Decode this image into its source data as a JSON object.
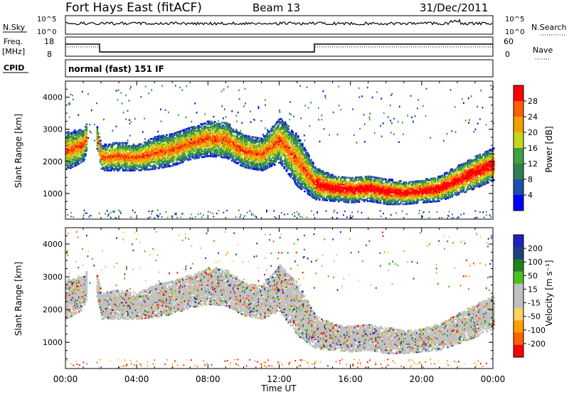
{
  "header": {
    "title": "Fort Hays East (fitACF)",
    "beam": "Beam 13",
    "date": "31/Dec/2011"
  },
  "strip_panels": {
    "nsky_label": "N.Sky",
    "nsearch_label": "N.Search",
    "nsky_ticks": [
      "10^5",
      "10^0"
    ],
    "nsearch_ticks": [
      "10^5",
      "10^0"
    ],
    "freq_label": "Freq.",
    "freq_unit": "[MHz]",
    "freq_ticks": [
      "18",
      "8"
    ],
    "nave_label": "Nave",
    "nave_ticks": [
      "60",
      "0"
    ],
    "cpid_label": "CPID",
    "cpid_value": "normal (fast) 151 IF"
  },
  "colors": {
    "power_scale": [
      "#0000ff",
      "#1f4fa8",
      "#2f7f50",
      "#3fa03f",
      "#c6d61e",
      "#f0a000",
      "#ff6000",
      "#ff0000"
    ],
    "velocity_scale": [
      "#ff0000",
      "#ff6000",
      "#ffa000",
      "#ffd060",
      "#c0c0c0",
      "#c0c0c0",
      "#50c020",
      "#208020",
      "#204080",
      "#2020c0"
    ],
    "ground_scatter": "#c0c0c0"
  },
  "chart_data": [
    {
      "type": "heatmap",
      "title": "Power",
      "xlabel": "Time UT",
      "ylabel": "Slant Range [km]",
      "x_ticks": [
        "00:00",
        "04:00",
        "08:00",
        "12:00",
        "16:00",
        "20:00",
        "00:00"
      ],
      "y_ticks": [
        "1000",
        "2000",
        "3000",
        "4000"
      ],
      "xlim": [
        0,
        24
      ],
      "ylim": [
        200,
        4500
      ],
      "colorbar_label": "Power [dB]",
      "colorbar_ticks": [
        "4",
        "8",
        "12",
        "16",
        "20",
        "24",
        "28"
      ],
      "color_range": [
        0,
        32
      ],
      "echo_band": {
        "hours": [
          0,
          1,
          1.5,
          2,
          3,
          4,
          5,
          6,
          7,
          8,
          9,
          10,
          11,
          12,
          13,
          14,
          15,
          16,
          17,
          18,
          19,
          20,
          21,
          22,
          23,
          24
        ],
        "center_km": [
          2300,
          2500,
          3300,
          2100,
          2150,
          2100,
          2250,
          2350,
          2550,
          2700,
          2650,
          2300,
          2200,
          2650,
          2000,
          1300,
          1150,
          1100,
          1150,
          1050,
          1000,
          1050,
          1150,
          1400,
          1650,
          1900
        ],
        "width_km": [
          600,
          500,
          300,
          400,
          450,
          400,
          500,
          500,
          500,
          550,
          550,
          500,
          500,
          700,
          800,
          500,
          400,
          400,
          400,
          400,
          350,
          350,
          400,
          450,
          500,
          500
        ]
      }
    },
    {
      "type": "heatmap",
      "title": "Velocity",
      "xlabel": "Time UT",
      "ylabel": "Slant Range [km]",
      "x_ticks": [
        "00:00",
        "04:00",
        "08:00",
        "12:00",
        "16:00",
        "20:00",
        "00:00"
      ],
      "y_ticks": [
        "1000",
        "2000",
        "3000",
        "4000"
      ],
      "xlim": [
        0,
        24
      ],
      "ylim": [
        200,
        4500
      ],
      "colorbar_label": "Velocity [m s⁻¹]",
      "colorbar_ticks": [
        "200",
        "100",
        "50",
        "15",
        "-15",
        "-50",
        "-100",
        "-200"
      ],
      "color_range": [
        -250,
        250
      ]
    }
  ]
}
